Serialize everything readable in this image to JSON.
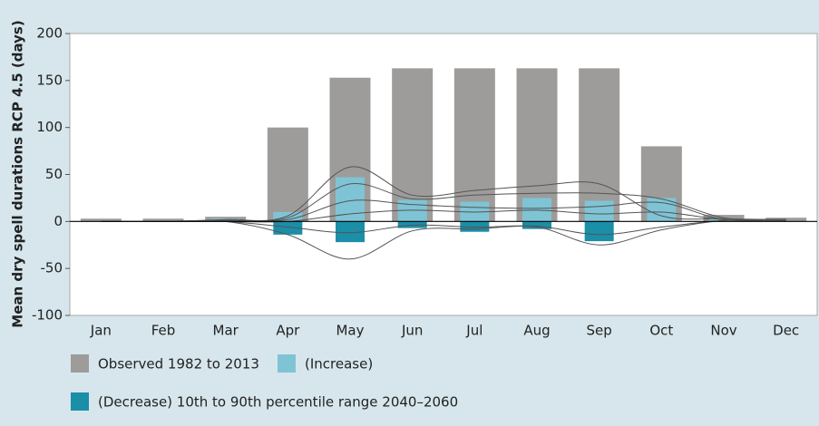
{
  "chart_data": {
    "type": "bar",
    "y_label": "Mean dry spell durations RCP 4.5 (days)",
    "categories": [
      "Jan",
      "Feb",
      "Mar",
      "Apr",
      "May",
      "Jun",
      "Jul",
      "Aug",
      "Sep",
      "Oct",
      "Nov",
      "Dec"
    ],
    "series": [
      {
        "name": "Observed 1982 to 2013",
        "color": "#9d9c9a",
        "values": [
          3,
          3,
          5,
          100,
          153,
          163,
          163,
          163,
          163,
          80,
          7,
          4
        ]
      },
      {
        "name": "(Increase)",
        "color": "#7fc4d5",
        "values": [
          0,
          0,
          3,
          10,
          47,
          23,
          21,
          25,
          22,
          25,
          3,
          0
        ]
      },
      {
        "name": "(Decrease) 10th to 90th percentile range 2040–2060",
        "color": "#1b8ea8",
        "values": [
          0,
          0,
          0,
          -14,
          -22,
          -7,
          -11,
          -8,
          -21,
          0,
          0,
          0
        ]
      }
    ],
    "lines_color": "#555555",
    "lines": [
      [
        0,
        0,
        2,
        6,
        58,
        28,
        33,
        38,
        40,
        6,
        3,
        2
      ],
      [
        0,
        0,
        1,
        4,
        40,
        24,
        28,
        30,
        30,
        24,
        4,
        2
      ],
      [
        0,
        0,
        1,
        2,
        22,
        18,
        15,
        14,
        16,
        20,
        2,
        2
      ],
      [
        0,
        0,
        0,
        0,
        8,
        12,
        10,
        12,
        8,
        10,
        2,
        1
      ],
      [
        0,
        0,
        0,
        -6,
        -12,
        -4,
        -6,
        -5,
        -14,
        -6,
        1,
        1
      ],
      [
        0,
        0,
        0,
        -14,
        -40,
        -10,
        -8,
        -6,
        -25,
        -9,
        1,
        2
      ]
    ],
    "ylim": [
      -100,
      200
    ],
    "yticks": [
      -100,
      -50,
      0,
      50,
      100,
      150,
      200
    ]
  }
}
